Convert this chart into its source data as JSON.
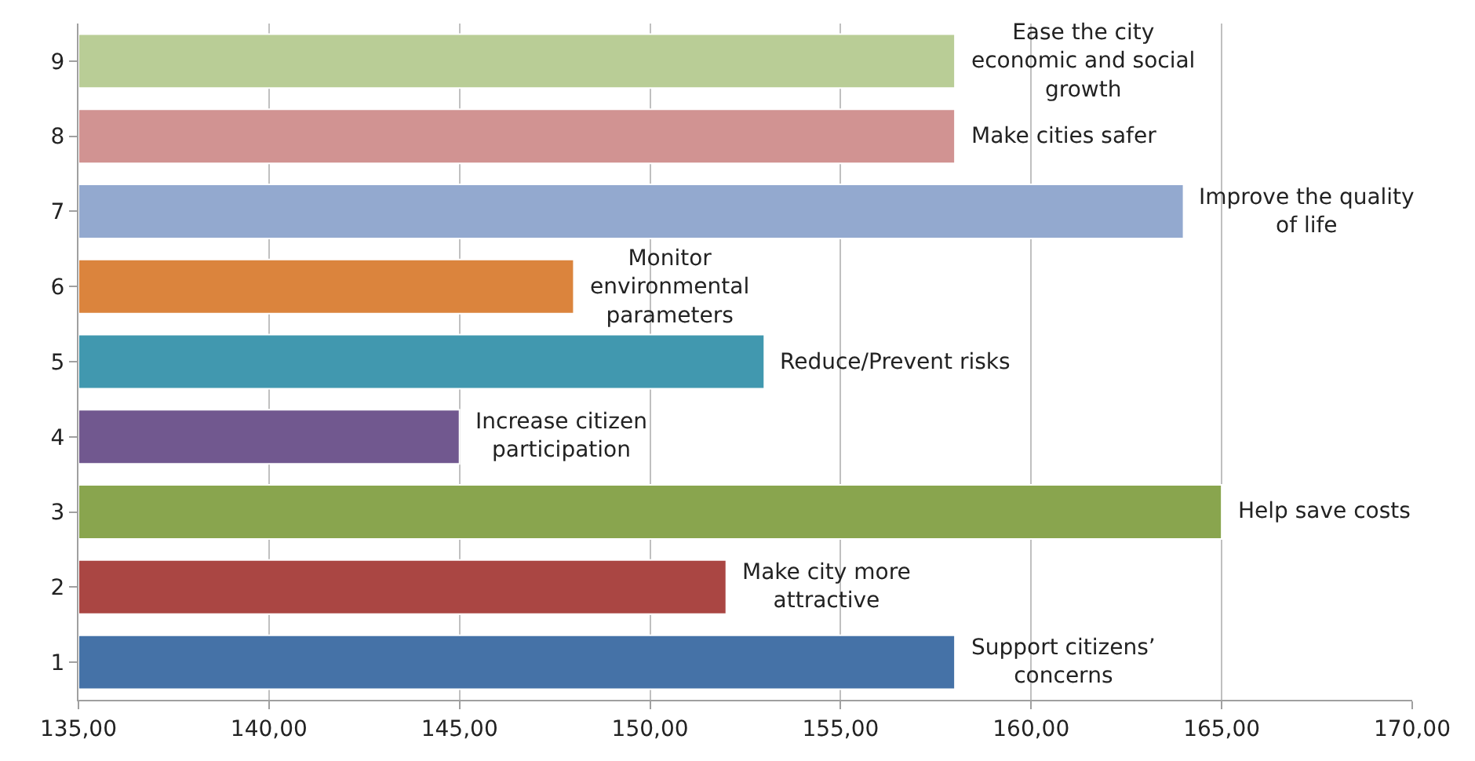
{
  "chart_data": {
    "type": "bar",
    "orientation": "horizontal",
    "categories": [
      "9",
      "8",
      "7",
      "6",
      "5",
      "4",
      "3",
      "2",
      "1"
    ],
    "values": [
      158,
      158,
      164,
      148,
      153,
      145,
      165,
      152,
      158
    ],
    "colors": [
      "#b9cd96",
      "#d19392",
      "#93a9cf",
      "#db843d",
      "#4198af",
      "#71588f",
      "#89a54e",
      "#aa4643",
      "#4572a7"
    ],
    "xlim": [
      135,
      170
    ],
    "xticks": [
      {
        "value": 135,
        "label": "135,00"
      },
      {
        "value": 140,
        "label": "140,00"
      },
      {
        "value": 145,
        "label": "145,00"
      },
      {
        "value": 150,
        "label": "150,00"
      },
      {
        "value": 155,
        "label": "155,00"
      },
      {
        "value": 160,
        "label": "160,00"
      },
      {
        "value": 165,
        "label": "165,00"
      },
      {
        "value": 170,
        "label": "170,00"
      }
    ],
    "grid": "x",
    "annotations": [
      {
        "text": "Ease the city economic and social growth",
        "x": 158,
        "y": "9"
      },
      {
        "text": "Make cities safer",
        "x": 158,
        "y": "8"
      },
      {
        "text": "Improve the quality of life",
        "x": 164,
        "y": "7"
      },
      {
        "text": "Monitor environmental parameters",
        "x": 148,
        "y": "6"
      },
      {
        "text": "Reduce/Prevent risks",
        "x": 153,
        "y": "5"
      },
      {
        "text": "Increase citizen participation",
        "x": 145,
        "y": "4"
      },
      {
        "text": "Help save costs",
        "x": 165,
        "y": "3"
      },
      {
        "text": "Make city more attractive",
        "x": 152,
        "y": "2"
      },
      {
        "text": "Support citizens’ concerns",
        "x": 158,
        "y": "1"
      }
    ]
  }
}
